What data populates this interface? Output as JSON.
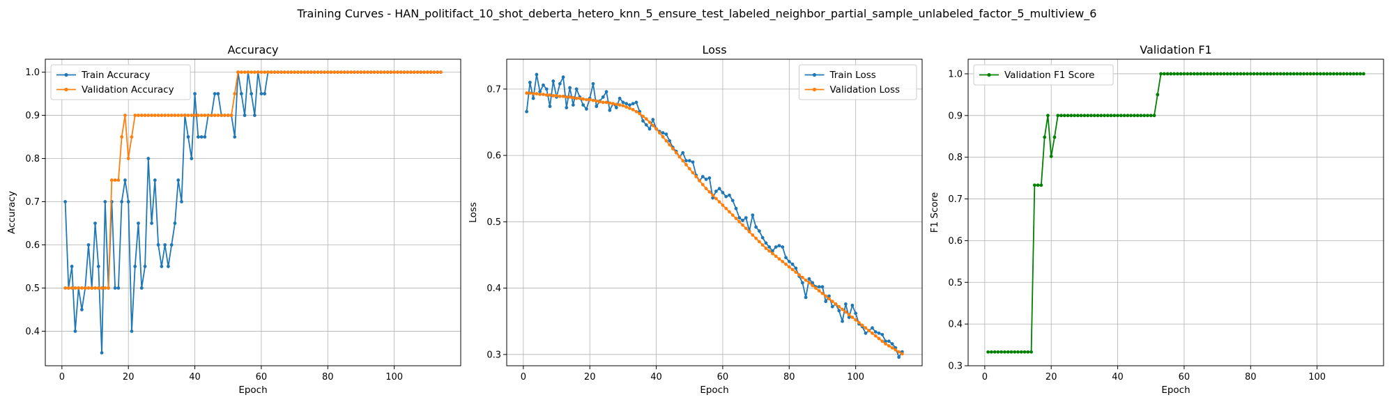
{
  "figure": {
    "suptitle": "Training Curves - HAN_politifact_10_shot_deberta_hetero_knn_5_ensure_test_labeled_neighbor_partial_sample_unlabeled_factor_5_multiview_6"
  },
  "colors": {
    "blue": "#1f77b4",
    "orange": "#ff7f0e",
    "green": "#008000",
    "grid": "#b0b0b0"
  },
  "chart_data": [
    {
      "type": "line",
      "title": "Accuracy",
      "xlabel": "Epoch",
      "ylabel": "Accuracy",
      "xlim": [
        -5,
        120
      ],
      "ylim": [
        0.32,
        1.03
      ],
      "xticks": [
        0,
        20,
        40,
        60,
        80,
        100
      ],
      "yticks": [
        0.4,
        0.5,
        0.6,
        0.7,
        0.8,
        0.9,
        1.0
      ],
      "ytick_labels": [
        "0.4",
        "0.5",
        "0.6",
        "0.7",
        "0.8",
        "0.9",
        "1.0"
      ],
      "grid": true,
      "legend": "upper-left",
      "x_start": 1,
      "series": [
        {
          "name": "Train Accuracy",
          "color": "#1f77b4",
          "values": [
            0.7,
            0.5,
            0.55,
            0.4,
            0.5,
            0.45,
            0.5,
            0.6,
            0.5,
            0.65,
            0.55,
            0.35,
            0.7,
            0.5,
            0.7,
            0.5,
            0.5,
            0.7,
            0.75,
            0.7,
            0.4,
            0.55,
            0.65,
            0.5,
            0.55,
            0.8,
            0.65,
            0.75,
            0.6,
            0.55,
            0.6,
            0.55,
            0.6,
            0.65,
            0.75,
            0.7,
            0.9,
            0.85,
            0.8,
            0.95,
            0.85,
            0.85,
            0.85,
            0.9,
            0.9,
            0.95,
            0.95,
            0.9,
            0.9,
            0.9,
            0.9,
            0.85,
            1.0,
            0.95,
            0.9,
            1.0,
            0.95,
            0.9,
            1.0,
            0.95,
            0.95,
            1.0,
            1.0,
            1.0,
            1.0,
            1.0,
            1.0,
            1.0,
            1.0,
            1.0,
            1.0,
            1.0,
            1.0,
            1.0,
            1.0,
            1.0,
            1.0,
            1.0,
            1.0,
            1.0,
            1.0,
            1.0,
            1.0,
            1.0,
            1.0,
            1.0,
            1.0,
            1.0,
            1.0,
            1.0,
            1.0,
            1.0,
            1.0,
            1.0,
            1.0,
            1.0,
            1.0,
            1.0,
            1.0,
            1.0,
            1.0,
            1.0,
            1.0,
            1.0,
            1.0,
            1.0,
            1.0,
            1.0,
            1.0,
            1.0,
            1.0,
            1.0,
            1.0,
            1.0
          ]
        },
        {
          "name": "Validation Accuracy",
          "color": "#ff7f0e",
          "values": [
            0.5,
            0.5,
            0.5,
            0.5,
            0.5,
            0.5,
            0.5,
            0.5,
            0.5,
            0.5,
            0.5,
            0.5,
            0.5,
            0.5,
            0.75,
            0.75,
            0.75,
            0.85,
            0.9,
            0.8,
            0.85,
            0.9,
            0.9,
            0.9,
            0.9,
            0.9,
            0.9,
            0.9,
            0.9,
            0.9,
            0.9,
            0.9,
            0.9,
            0.9,
            0.9,
            0.9,
            0.9,
            0.9,
            0.9,
            0.9,
            0.9,
            0.9,
            0.9,
            0.9,
            0.9,
            0.9,
            0.9,
            0.9,
            0.9,
            0.9,
            0.9,
            0.95,
            1.0,
            1.0,
            1.0,
            1.0,
            1.0,
            1.0,
            1.0,
            1.0,
            1.0,
            1.0,
            1.0,
            1.0,
            1.0,
            1.0,
            1.0,
            1.0,
            1.0,
            1.0,
            1.0,
            1.0,
            1.0,
            1.0,
            1.0,
            1.0,
            1.0,
            1.0,
            1.0,
            1.0,
            1.0,
            1.0,
            1.0,
            1.0,
            1.0,
            1.0,
            1.0,
            1.0,
            1.0,
            1.0,
            1.0,
            1.0,
            1.0,
            1.0,
            1.0,
            1.0,
            1.0,
            1.0,
            1.0,
            1.0,
            1.0,
            1.0,
            1.0,
            1.0,
            1.0,
            1.0,
            1.0,
            1.0,
            1.0,
            1.0,
            1.0,
            1.0,
            1.0,
            1.0
          ]
        }
      ]
    },
    {
      "type": "line",
      "title": "Loss",
      "xlabel": "Epoch",
      "ylabel": "Loss",
      "xlim": [
        -5,
        120
      ],
      "ylim": [
        0.283,
        0.745
      ],
      "xticks": [
        0,
        20,
        40,
        60,
        80,
        100
      ],
      "yticks": [
        0.3,
        0.4,
        0.5,
        0.6,
        0.7
      ],
      "ytick_labels": [
        "0.3",
        "0.4",
        "0.5",
        "0.6",
        "0.7"
      ],
      "grid": true,
      "legend": "upper-right",
      "x_start": 1,
      "series": [
        {
          "name": "Train Loss",
          "color": "#1f77b4",
          "values": [
            0.666,
            0.71,
            0.686,
            0.722,
            0.696,
            0.706,
            0.7,
            0.674,
            0.712,
            0.688,
            0.708,
            0.718,
            0.672,
            0.702,
            0.676,
            0.7,
            0.688,
            0.676,
            0.67,
            0.686,
            0.708,
            0.674,
            0.682,
            0.688,
            0.696,
            0.668,
            0.678,
            0.672,
            0.686,
            0.68,
            0.678,
            0.676,
            0.678,
            0.68,
            0.666,
            0.652,
            0.646,
            0.64,
            0.654,
            0.64,
            0.636,
            0.634,
            0.632,
            0.622,
            0.612,
            0.606,
            0.598,
            0.604,
            0.592,
            0.592,
            0.59,
            0.57,
            0.562,
            0.568,
            0.564,
            0.566,
            0.536,
            0.546,
            0.55,
            0.544,
            0.538,
            0.54,
            0.532,
            0.52,
            0.506,
            0.502,
            0.506,
            0.486,
            0.51,
            0.492,
            0.486,
            0.476,
            0.468,
            0.462,
            0.456,
            0.462,
            0.464,
            0.462,
            0.446,
            0.44,
            0.436,
            0.43,
            0.418,
            0.408,
            0.386,
            0.414,
            0.408,
            0.402,
            0.402,
            0.402,
            0.38,
            0.388,
            0.372,
            0.376,
            0.366,
            0.35,
            0.376,
            0.356,
            0.374,
            0.362,
            0.346,
            0.342,
            0.332,
            0.336,
            0.34,
            0.334,
            0.332,
            0.33,
            0.32,
            0.32,
            0.316,
            0.31,
            0.296,
            0.304
          ]
        },
        {
          "name": "Validation Loss",
          "color": "#ff7f0e",
          "values": [
            0.694,
            0.694,
            0.693,
            0.693,
            0.692,
            0.692,
            0.691,
            0.691,
            0.69,
            0.69,
            0.689,
            0.689,
            0.688,
            0.688,
            0.687,
            0.686,
            0.686,
            0.685,
            0.684,
            0.684,
            0.683,
            0.682,
            0.681,
            0.68,
            0.68,
            0.679,
            0.678,
            0.677,
            0.676,
            0.675,
            0.673,
            0.671,
            0.669,
            0.666,
            0.663,
            0.659,
            0.655,
            0.65,
            0.645,
            0.64,
            0.634,
            0.628,
            0.622,
            0.616,
            0.61,
            0.604,
            0.598,
            0.592,
            0.586,
            0.58,
            0.574,
            0.568,
            0.562,
            0.556,
            0.55,
            0.545,
            0.54,
            0.535,
            0.53,
            0.525,
            0.52,
            0.515,
            0.51,
            0.505,
            0.5,
            0.495,
            0.49,
            0.485,
            0.48,
            0.475,
            0.47,
            0.465,
            0.46,
            0.456,
            0.452,
            0.448,
            0.444,
            0.44,
            0.436,
            0.432,
            0.428,
            0.424,
            0.42,
            0.416,
            0.412,
            0.408,
            0.404,
            0.4,
            0.396,
            0.392,
            0.388,
            0.384,
            0.38,
            0.376,
            0.372,
            0.368,
            0.364,
            0.36,
            0.356,
            0.352,
            0.348,
            0.344,
            0.34,
            0.336,
            0.332,
            0.328,
            0.324,
            0.32,
            0.316,
            0.313,
            0.31,
            0.307,
            0.304,
            0.301
          ]
        }
      ]
    },
    {
      "type": "line",
      "title": "Validation F1",
      "xlabel": "Epoch",
      "ylabel": "F1 Score",
      "xlim": [
        -5,
        120
      ],
      "ylim": [
        0.3,
        1.035
      ],
      "xticks": [
        0,
        20,
        40,
        60,
        80,
        100
      ],
      "yticks": [
        0.3,
        0.4,
        0.5,
        0.6,
        0.7,
        0.8,
        0.9,
        1.0
      ],
      "ytick_labels": [
        "0.3",
        "0.4",
        "0.5",
        "0.6",
        "0.7",
        "0.8",
        "0.9",
        "1.0"
      ],
      "grid": true,
      "legend": "upper-left",
      "x_start": 1,
      "series": [
        {
          "name": "Validation F1 Score",
          "color": "#008000",
          "values": [
            0.333,
            0.333,
            0.333,
            0.333,
            0.333,
            0.333,
            0.333,
            0.333,
            0.333,
            0.333,
            0.333,
            0.333,
            0.333,
            0.333,
            0.733,
            0.733,
            0.733,
            0.848,
            0.9,
            0.802,
            0.848,
            0.9,
            0.9,
            0.9,
            0.9,
            0.9,
            0.9,
            0.9,
            0.9,
            0.9,
            0.9,
            0.9,
            0.9,
            0.9,
            0.9,
            0.9,
            0.9,
            0.9,
            0.9,
            0.9,
            0.9,
            0.9,
            0.9,
            0.9,
            0.9,
            0.9,
            0.9,
            0.9,
            0.9,
            0.9,
            0.9,
            0.95,
            1.0,
            1.0,
            1.0,
            1.0,
            1.0,
            1.0,
            1.0,
            1.0,
            1.0,
            1.0,
            1.0,
            1.0,
            1.0,
            1.0,
            1.0,
            1.0,
            1.0,
            1.0,
            1.0,
            1.0,
            1.0,
            1.0,
            1.0,
            1.0,
            1.0,
            1.0,
            1.0,
            1.0,
            1.0,
            1.0,
            1.0,
            1.0,
            1.0,
            1.0,
            1.0,
            1.0,
            1.0,
            1.0,
            1.0,
            1.0,
            1.0,
            1.0,
            1.0,
            1.0,
            1.0,
            1.0,
            1.0,
            1.0,
            1.0,
            1.0,
            1.0,
            1.0,
            1.0,
            1.0,
            1.0,
            1.0,
            1.0,
            1.0,
            1.0,
            1.0,
            1.0,
            1.0
          ]
        }
      ]
    }
  ]
}
